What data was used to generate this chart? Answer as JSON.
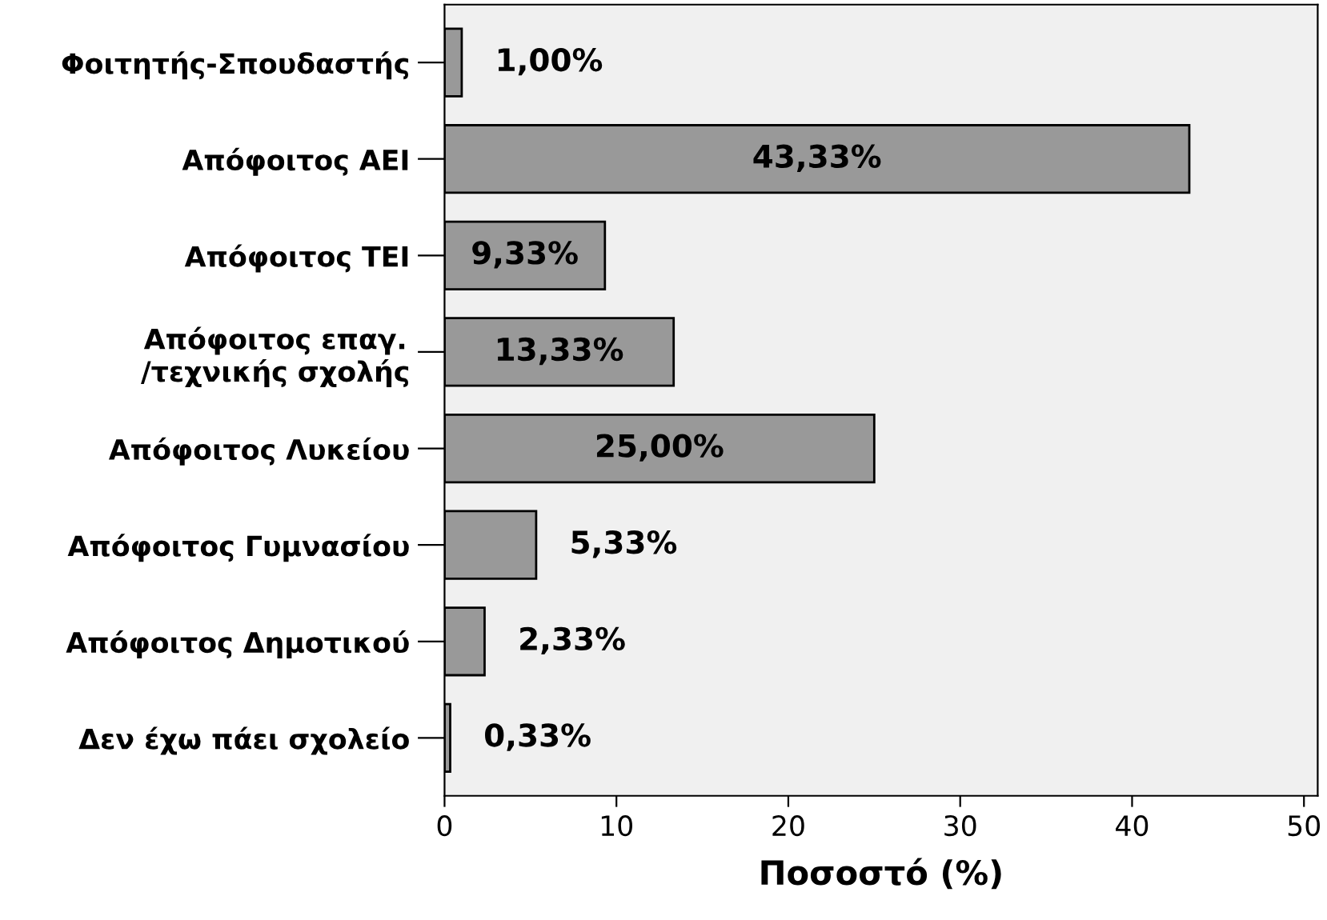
{
  "chart_data": {
    "type": "bar",
    "orientation": "horizontal",
    "xlabel": "Ποσοστό (%)",
    "categories": [
      "Φοιτητής-Σπουδαστής",
      "Απόφοιτος ΑΕΙ",
      "Απόφοιτος ΤΕΙ",
      "Απόφοιτος επαγ.\n/τεχνικής σχολής",
      "Απόφοιτος Λυκείου",
      "Απόφοιτος Γυμνασίου",
      "Απόφοιτος Δημοτικού",
      "Δεν έχω πάει σχολείο"
    ],
    "values": [
      1.0,
      43.33,
      9.33,
      13.33,
      25.0,
      5.33,
      2.33,
      0.33
    ],
    "value_labels": [
      "1,00%",
      "43,33%",
      "9,33%",
      "13,33%",
      "25,00%",
      "5,33%",
      "2,33%",
      "0,33%"
    ],
    "color": "#999999",
    "xlim": [
      0,
      50.8
    ],
    "xticks": [
      0,
      10,
      20,
      30,
      40,
      50
    ],
    "grid": false,
    "legend": false
  }
}
